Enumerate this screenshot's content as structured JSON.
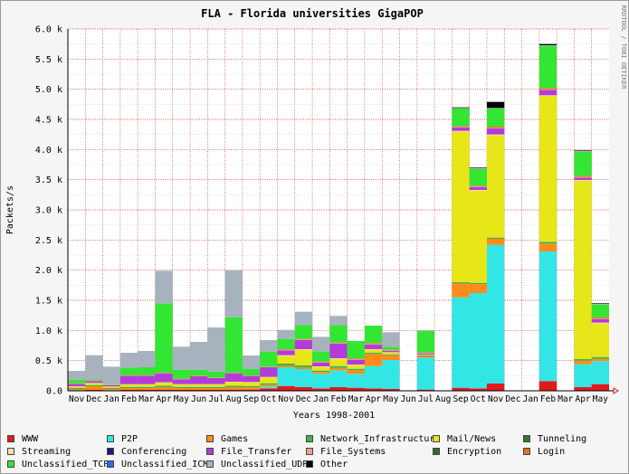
{
  "chart_data": {
    "type": "bar",
    "stacked": true,
    "title": "FLA - Florida universities GigaPOP",
    "side_label": "RRDTOOL / TOBI OETIKER",
    "xlabel": "Years 1998-2001",
    "ylabel": "Packets/s",
    "ylim": [
      0,
      6000
    ],
    "yticks": [
      "0.0",
      "0.5 k",
      "1.0 k",
      "1.5 k",
      "2.0 k",
      "2.5 k",
      "3.0 k",
      "3.5 k",
      "4.0 k",
      "4.5 k",
      "5.0 k",
      "5.5 k",
      "6.0 k"
    ],
    "grid": true,
    "legend_position": "bottom",
    "categories": [
      "Nov",
      "Dec",
      "Jan",
      "Feb",
      "Mar",
      "Apr",
      "May",
      "Jun",
      "Jul",
      "Aug",
      "Sep",
      "Oct",
      "Nov",
      "Dec",
      "Jan",
      "Feb",
      "Mar",
      "Apr",
      "May",
      "Jun",
      "Jul",
      "Aug",
      "Sep",
      "Oct",
      "Nov",
      "Dec",
      "Jan",
      "Feb",
      "Mar",
      "Apr",
      "May"
    ],
    "series": [
      {
        "name": "WWW",
        "color": "#e31a1c",
        "values": [
          10,
          15,
          10,
          15,
          15,
          20,
          15,
          15,
          15,
          20,
          20,
          40,
          80,
          60,
          40,
          60,
          50,
          40,
          30,
          0,
          20,
          0,
          50,
          40,
          120,
          0,
          0,
          160,
          0,
          60,
          110
        ]
      },
      {
        "name": "P2P",
        "color": "#33e6e6",
        "values": [
          0,
          0,
          0,
          0,
          0,
          0,
          0,
          0,
          0,
          0,
          0,
          30,
          310,
          300,
          240,
          280,
          230,
          370,
          480,
          0,
          530,
          0,
          1500,
          1580,
          2300,
          0,
          0,
          2150,
          0,
          380,
          380
        ]
      },
      {
        "name": "Games",
        "color": "#ff8c1a",
        "values": [
          20,
          60,
          20,
          30,
          30,
          40,
          30,
          30,
          30,
          40,
          40,
          30,
          30,
          30,
          30,
          40,
          60,
          200,
          80,
          0,
          20,
          0,
          230,
          150,
          100,
          0,
          0,
          130,
          0,
          60,
          40
        ]
      },
      {
        "name": "Network_Infrastructure",
        "color": "#3cb34b",
        "values": [
          20,
          20,
          15,
          20,
          20,
          25,
          20,
          20,
          20,
          25,
          20,
          25,
          30,
          30,
          25,
          30,
          25,
          20,
          15,
          0,
          15,
          0,
          20,
          20,
          20,
          0,
          0,
          30,
          0,
          25,
          30
        ]
      },
      {
        "name": "Mail/News",
        "color": "#e6e619",
        "values": [
          20,
          30,
          20,
          40,
          40,
          50,
          40,
          40,
          40,
          60,
          60,
          100,
          130,
          260,
          60,
          120,
          60,
          50,
          30,
          0,
          10,
          0,
          2500,
          1530,
          1700,
          0,
          0,
          2420,
          0,
          2960,
          560
        ]
      },
      {
        "name": "Tunneling",
        "color": "#2d7a2d",
        "values": [
          0,
          0,
          0,
          0,
          0,
          0,
          0,
          0,
          0,
          0,
          0,
          0,
          0,
          0,
          0,
          0,
          0,
          0,
          0,
          0,
          0,
          0,
          0,
          0,
          0,
          0,
          0,
          0,
          0,
          0,
          0
        ]
      },
      {
        "name": "Streaming",
        "color": "#ffd9b3",
        "values": [
          5,
          5,
          5,
          5,
          5,
          5,
          5,
          5,
          5,
          5,
          5,
          5,
          10,
          10,
          10,
          10,
          10,
          10,
          5,
          0,
          5,
          0,
          10,
          10,
          10,
          0,
          0,
          10,
          0,
          10,
          10
        ]
      },
      {
        "name": "Conferencing",
        "color": "#1a1a80",
        "values": [
          0,
          0,
          0,
          0,
          0,
          0,
          0,
          0,
          0,
          0,
          0,
          0,
          0,
          0,
          0,
          0,
          0,
          0,
          0,
          0,
          0,
          0,
          0,
          0,
          0,
          0,
          0,
          0,
          0,
          0,
          0
        ]
      },
      {
        "name": "File_Transfer",
        "color": "#b33cd9",
        "values": [
          40,
          30,
          20,
          140,
          140,
          150,
          80,
          130,
          100,
          140,
          100,
          160,
          80,
          150,
          60,
          240,
          80,
          80,
          20,
          0,
          20,
          0,
          60,
          50,
          100,
          0,
          0,
          90,
          0,
          40,
          60
        ]
      },
      {
        "name": "File_Systems",
        "color": "#f2a08c",
        "values": [
          5,
          5,
          5,
          5,
          5,
          5,
          5,
          5,
          5,
          5,
          5,
          5,
          10,
          10,
          10,
          10,
          10,
          10,
          10,
          0,
          10,
          0,
          10,
          10,
          10,
          0,
          0,
          10,
          0,
          10,
          10
        ]
      },
      {
        "name": "Encryption",
        "color": "#2e6b2e",
        "values": [
          0,
          0,
          0,
          0,
          0,
          0,
          0,
          0,
          0,
          0,
          0,
          0,
          0,
          0,
          0,
          0,
          0,
          0,
          0,
          0,
          0,
          0,
          0,
          0,
          0,
          0,
          0,
          0,
          0,
          0,
          0
        ]
      },
      {
        "name": "Login",
        "color": "#e6731a",
        "values": [
          5,
          5,
          5,
          5,
          5,
          5,
          5,
          5,
          5,
          5,
          5,
          5,
          10,
          10,
          10,
          10,
          10,
          10,
          10,
          0,
          10,
          0,
          10,
          10,
          20,
          0,
          0,
          20,
          0,
          20,
          20
        ]
      },
      {
        "name": "Unclassified_TCP",
        "color": "#33e633",
        "values": [
          60,
          20,
          10,
          120,
          130,
          1150,
          150,
          100,
          100,
          920,
          110,
          250,
          170,
          230,
          170,
          290,
          290,
          290,
          50,
          0,
          350,
          0,
          290,
          280,
          300,
          0,
          0,
          700,
          0,
          400,
          210
        ]
      },
      {
        "name": "Unclassified_ICMP",
        "color": "#3366e6",
        "values": [
          0,
          0,
          0,
          0,
          0,
          0,
          0,
          0,
          0,
          0,
          0,
          0,
          0,
          0,
          0,
          0,
          0,
          0,
          0,
          0,
          0,
          0,
          0,
          0,
          0,
          0,
          0,
          0,
          0,
          0,
          0
        ]
      },
      {
        "name": "Unclassified_UDP",
        "color": "#a6b3bf",
        "values": [
          145,
          400,
          290,
          250,
          270,
          540,
          380,
          460,
          730,
          780,
          220,
          190,
          150,
          220,
          240,
          150,
          0,
          0,
          240,
          0,
          10,
          0,
          10,
          10,
          10,
          0,
          0,
          10,
          0,
          10,
          10
        ]
      },
      {
        "name": "Other",
        "color": "#000000",
        "values": [
          0,
          0,
          0,
          0,
          0,
          0,
          0,
          0,
          0,
          0,
          0,
          0,
          0,
          0,
          0,
          0,
          0,
          0,
          0,
          0,
          0,
          0,
          10,
          10,
          100,
          0,
          0,
          20,
          0,
          10,
          10
        ]
      }
    ]
  }
}
